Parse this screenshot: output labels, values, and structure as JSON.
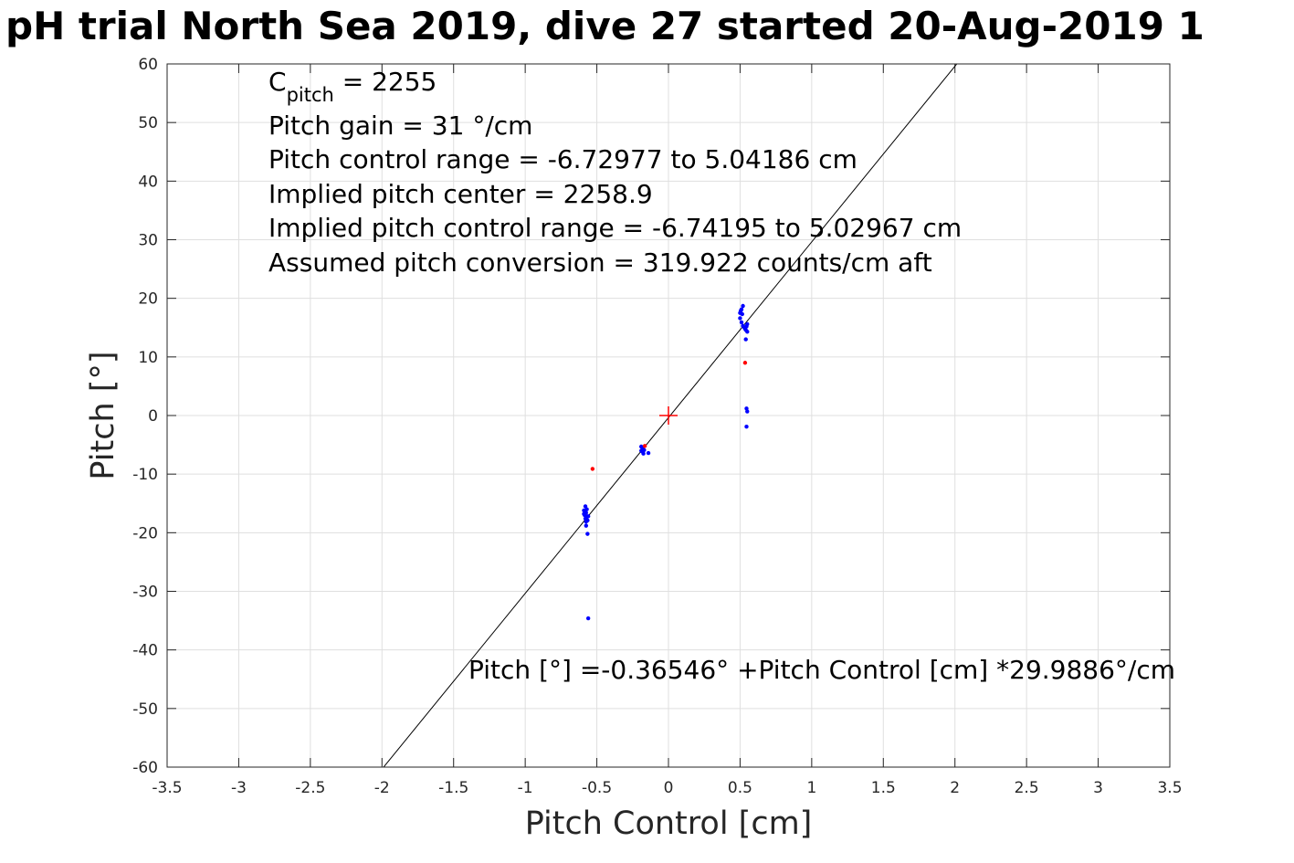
{
  "chart_data": {
    "type": "scatter",
    "title": "pH trial North Sea 2019, dive 27 started 20-Aug-2019 1",
    "xlabel": "Pitch Control [cm]",
    "ylabel": "Pitch [°]",
    "xlim": [
      -3.5,
      3.5
    ],
    "ylim": [
      -60,
      60
    ],
    "xticks": [
      -3.5,
      -3,
      -2.5,
      -2,
      -1.5,
      -1,
      -0.5,
      0,
      0.5,
      1,
      1.5,
      2,
      2.5,
      3,
      3.5
    ],
    "yticks": [
      -60,
      -50,
      -40,
      -30,
      -20,
      -10,
      0,
      10,
      20,
      30,
      40,
      50,
      60
    ],
    "xtick_labels": [
      "-3.5",
      "-3",
      "-2.5",
      "-2",
      "-1.5",
      "-1",
      "-0.5",
      "0",
      "0.5",
      "1",
      "1.5",
      "2",
      "2.5",
      "3",
      "3.5"
    ],
    "ytick_labels": [
      "-60",
      "-50",
      "-40",
      "-30",
      "-20",
      "-10",
      "0",
      "10",
      "20",
      "30",
      "40",
      "50",
      "60"
    ],
    "grid": true,
    "annotations": {
      "cpitch_base": "C",
      "cpitch_sub": "pitch",
      "cpitch_rest": " = 2255",
      "lines": [
        "Pitch gain = 31 °/cm",
        "Pitch control range = -6.72977 to 5.04186 cm",
        "Implied pitch center = 2258.9",
        "Implied pitch control range = -6.74195 to 5.02967 cm",
        "Assumed pitch conversion = 319.922 counts/cm aft"
      ],
      "fit_equation": "Pitch [°] =-0.36546° +Pitch Control [cm] *29.9886°/cm"
    },
    "fit_line": {
      "intercept": -0.36546,
      "slope": 29.9886,
      "color": "#000000"
    },
    "center_marker": {
      "x": 0,
      "y": 0,
      "color": "#ff0000"
    },
    "series": [
      {
        "color": "#0000ff",
        "points": [
          [
            -0.58,
            -15.5
          ],
          [
            -0.59,
            -16.2
          ],
          [
            -0.575,
            -16.6
          ],
          [
            -0.585,
            -17.0
          ],
          [
            -0.57,
            -17.3
          ],
          [
            -0.58,
            -17.6
          ],
          [
            -0.565,
            -17.9
          ],
          [
            -0.575,
            -18.1
          ],
          [
            -0.56,
            -17.2
          ],
          [
            -0.59,
            -16.8
          ],
          [
            -0.57,
            -16.0
          ],
          [
            -0.575,
            -18.8
          ],
          [
            -0.565,
            -20.2
          ],
          [
            -0.56,
            -34.6
          ],
          [
            -0.19,
            -5.3
          ],
          [
            -0.18,
            -5.7
          ],
          [
            -0.185,
            -6.1
          ],
          [
            -0.175,
            -6.5
          ],
          [
            -0.14,
            -6.4
          ],
          [
            -0.19,
            -6.0
          ],
          [
            -0.17,
            -5.9
          ],
          [
            0.5,
            17.5
          ],
          [
            0.51,
            18.1
          ],
          [
            0.52,
            18.7
          ],
          [
            0.505,
            17.9
          ],
          [
            0.515,
            17.3
          ],
          [
            0.5,
            16.6
          ],
          [
            0.51,
            15.9
          ],
          [
            0.52,
            15.3
          ],
          [
            0.53,
            15.0
          ],
          [
            0.54,
            14.6
          ],
          [
            0.55,
            14.3
          ],
          [
            0.545,
            15.2
          ],
          [
            0.535,
            14.8
          ],
          [
            0.55,
            15.6
          ],
          [
            0.54,
            13.0
          ],
          [
            0.545,
            1.2
          ],
          [
            0.55,
            0.7
          ],
          [
            0.545,
            -1.9
          ]
        ]
      },
      {
        "color": "#ff0000",
        "points": [
          [
            -0.53,
            -9.1
          ],
          [
            -0.165,
            -5.2
          ],
          [
            0.535,
            9.0
          ]
        ]
      }
    ]
  }
}
